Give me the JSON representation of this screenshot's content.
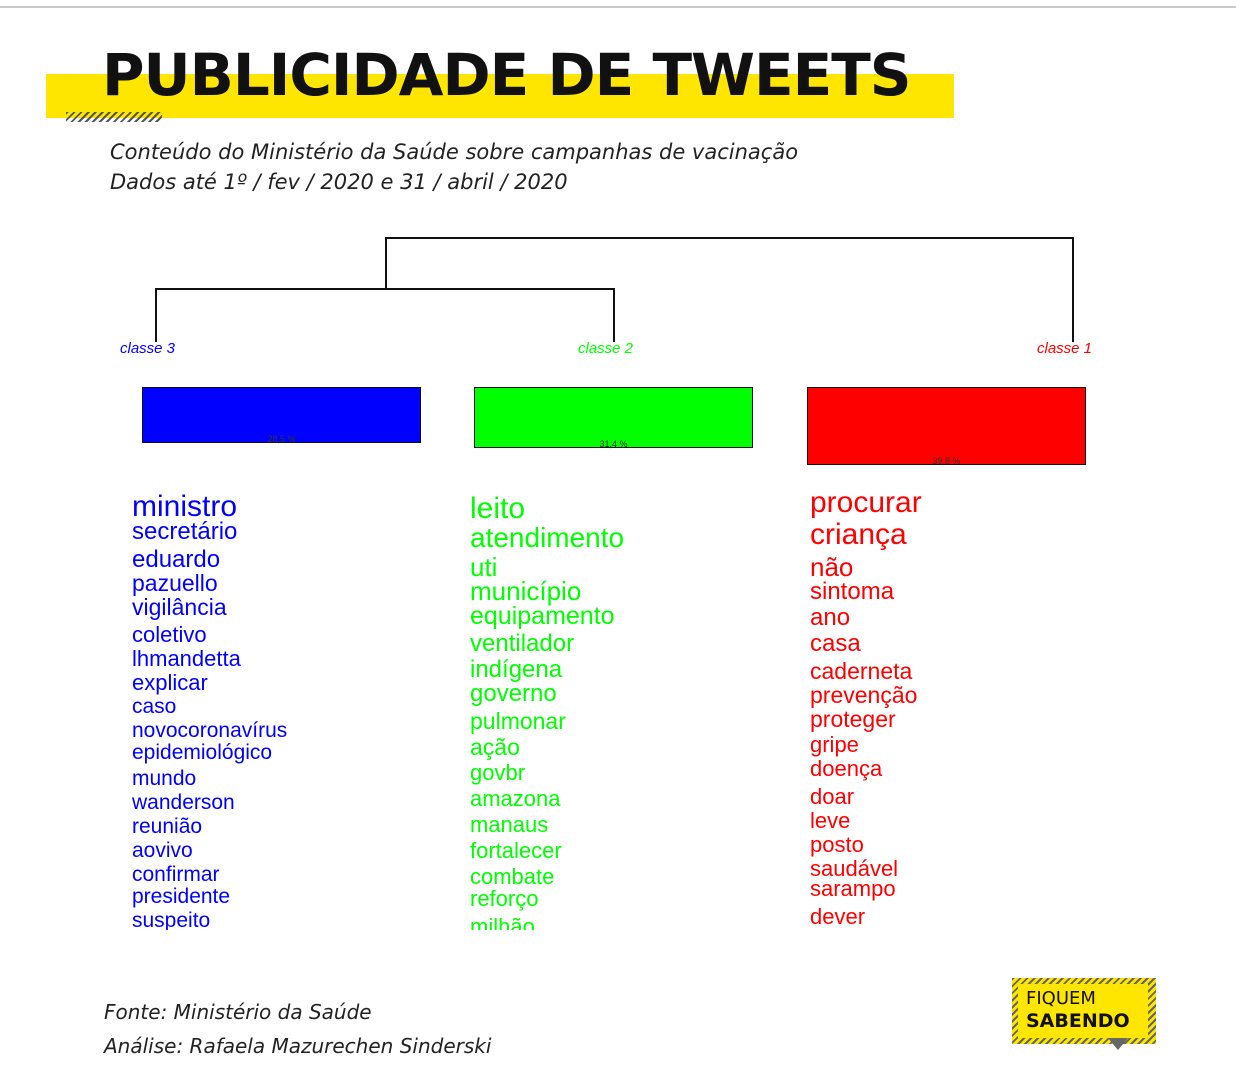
{
  "header": {
    "title": "PUBLICIDADE DE TWEETS",
    "subtitle_line1": "Conteúdo do Ministério da Saúde sobre campanhas de vacinação",
    "subtitle_line2": "Dados até 1º / fev / 2020 e 31 / abril / 2020"
  },
  "colors": {
    "class3": "#0000ff",
    "class2": "#00ff00",
    "class1": "#ff0000",
    "accent": "#ffe600"
  },
  "classes": [
    {
      "label": "classe  3",
      "percent_label": "28,5 %",
      "percent": 28.5
    },
    {
      "label": "classe  2",
      "percent_label": "31,4 %",
      "percent": 31.4
    },
    {
      "label": "classe  1",
      "percent_label": "39,8 %",
      "percent": 39.8
    }
  ],
  "words": {
    "class3": [
      "ministro",
      "secretário",
      "eduardo",
      "pazuello",
      "vigilância",
      "coletivo",
      "lhmandetta",
      "explicar",
      "caso",
      "novocoronavírus",
      "epidemiológico",
      "mundo",
      "wanderson",
      "reunião",
      "aovivo",
      "confirmar",
      "presidente",
      "suspeito"
    ],
    "class2": [
      "leito",
      "atendimento",
      "uti",
      "município",
      "equipamento",
      "ventilador",
      "indígena",
      "governo",
      "pulmonar",
      "ação",
      "govbr",
      "amazona",
      "manaus",
      "fortalecer",
      "combate",
      "reforço",
      "milhão"
    ],
    "class1": [
      "procurar",
      "criança",
      "não",
      "sintoma",
      "ano",
      "casa",
      "caderneta",
      "prevenção",
      "proteger",
      "gripe",
      "doença",
      "doar",
      "leve",
      "posto",
      "saudável",
      "sarampo",
      "dever"
    ]
  },
  "footer": {
    "source": "Fonte: Ministério da Saúde",
    "analysis": "Análise: Rafaela Mazurechen Sinderski"
  },
  "logo": {
    "line1": "FIQUEM",
    "line2": "SABENDO"
  }
}
